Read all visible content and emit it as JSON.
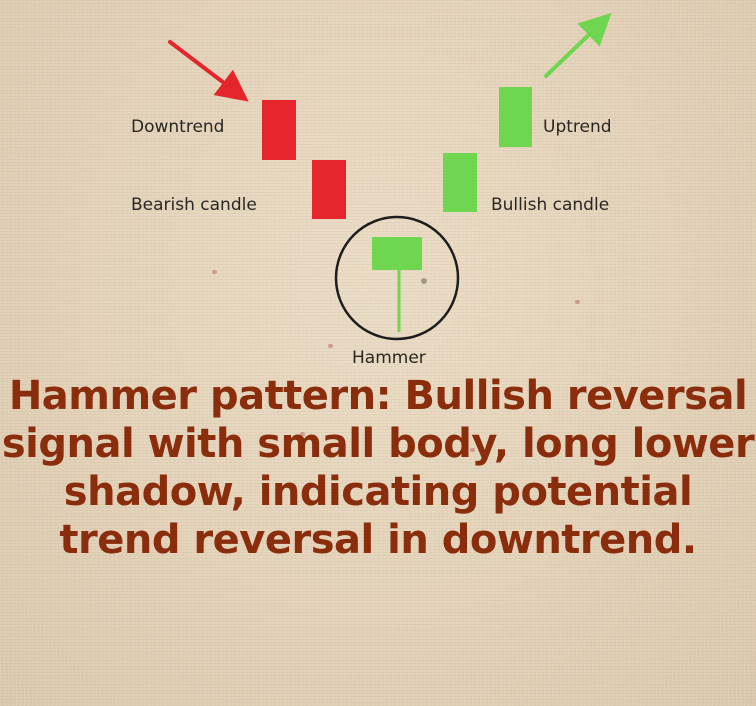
{
  "labels": {
    "downtrend": "Downtrend",
    "bearish_candle": "Bearish candle",
    "uptrend": "Uptrend",
    "bullish_candle": "Bullish candle",
    "hammer": "Hammer"
  },
  "caption": "Hammer pattern: Bullish reversal signal with small body, long lower shadow, indicating potential trend reversal in downtrend.",
  "colors": {
    "bearish": "#e4262c",
    "bullish": "#6fd64f",
    "caption_text": "#8a2d0c",
    "circle": "#1d1d1d",
    "background": "#e6d6be"
  }
}
